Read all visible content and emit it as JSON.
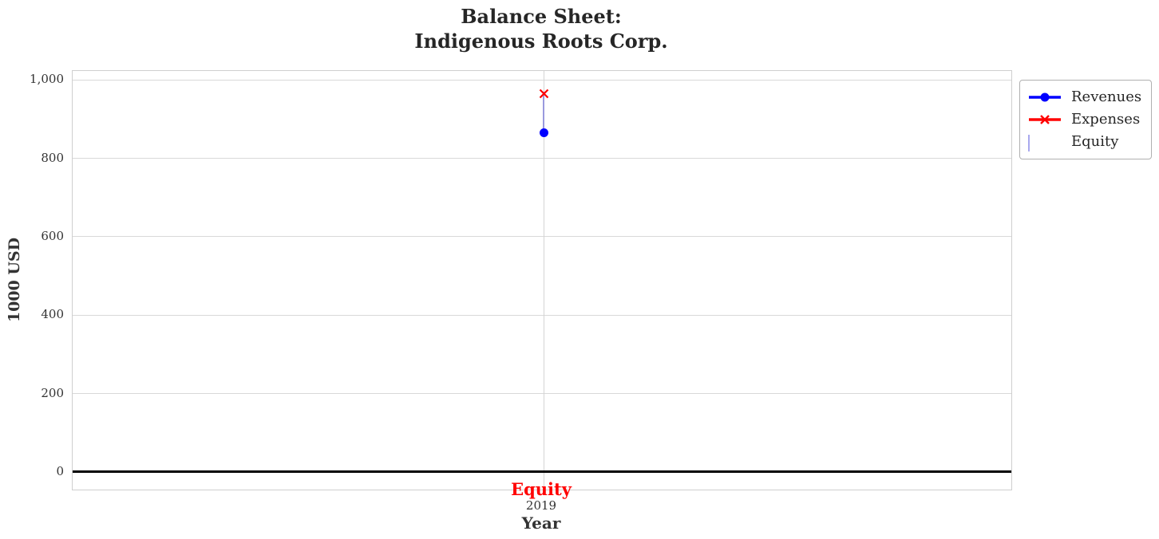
{
  "title": {
    "line1": "Balance Sheet:",
    "line2": "Indigenous Roots Corp."
  },
  "axes": {
    "xlabel": "Year",
    "ylabel": "1000 USD",
    "x_tick_labels": [
      "2019"
    ],
    "y_tick_labels": [
      "0",
      "200",
      "400",
      "600",
      "800",
      "1,000"
    ]
  },
  "annotation": {
    "text": "Equity",
    "color": "#ff0000"
  },
  "legend": {
    "items": [
      {
        "label": "Revenues",
        "marker": "line-with-circle",
        "color": "#0000ff"
      },
      {
        "label": "Expenses",
        "marker": "line-with-x",
        "color": "#ff0000"
      },
      {
        "label": "Equity",
        "marker": "hatched-patch",
        "fill": "#ccccff",
        "edge": "#a9a9ee",
        "hatch": "///"
      }
    ]
  },
  "chart_data": {
    "type": "line",
    "title": "Balance Sheet: Indigenous Roots Corp.",
    "xlabel": "Year",
    "ylabel": "1000 USD",
    "x": [
      2019
    ],
    "series": [
      {
        "name": "Revenues",
        "values": [
          865
        ],
        "color": "#0000ff",
        "marker": "o"
      },
      {
        "name": "Expenses",
        "values": [
          970
        ],
        "color": "#ff0000",
        "marker": "x"
      },
      {
        "name": "Equity",
        "values": [
          -105
        ],
        "color": "#ccccff",
        "hatch": "///",
        "note": "drawn as thin hatched band between Revenues and Expenses at x=2019"
      }
    ],
    "ylim": [
      -45,
      1023
    ],
    "yticks": [
      {
        "value": 0,
        "label": "0"
      },
      {
        "value": 200,
        "label": "200"
      },
      {
        "value": 400,
        "label": "400"
      },
      {
        "value": 600,
        "label": "600"
      },
      {
        "value": 800,
        "label": "800"
      },
      {
        "value": 1000,
        "label": "1,000"
      }
    ],
    "grid": true,
    "zero_line": {
      "value": 0,
      "color": "#000000"
    },
    "x_fraction": 0.502,
    "legend_position": "outside-upper-right",
    "annotations": [
      {
        "text": "Equity",
        "x": 2019,
        "position": "below-x-axis",
        "color": "#ff0000",
        "bold": true
      }
    ]
  }
}
